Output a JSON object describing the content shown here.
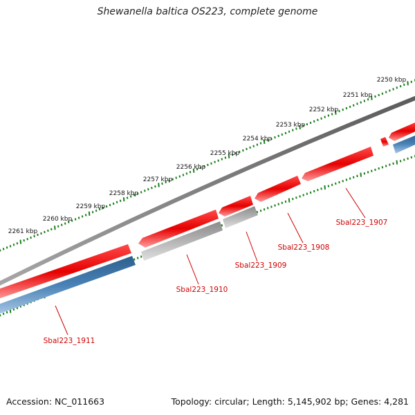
{
  "title": "Shewanella baltica OS223, complete genome",
  "footer": {
    "accession": "Accession: NC_011663",
    "summary": "Topology: circular; Length: 5,145,902 bp; Genes: 4,281"
  },
  "colors": {
    "backbone": "#7a7778",
    "forward_cds": "#e00000",
    "reverse_cds": "#4a82b6",
    "pseudo": "#a8a8a8",
    "ticks": "#1a7f1a",
    "gene_label": "#d00000"
  },
  "tick_labels": [
    "2250 kbp",
    "2251 kbp",
    "2252 kbp",
    "2253 kbp",
    "2254 kbp",
    "2255 kbp",
    "2256 kbp",
    "2257 kbp",
    "2258 kbp",
    "2259 kbp",
    "2260 kbp",
    "2261 kbp"
  ],
  "gene_labels": [
    "Sbal223_1907",
    "Sbal223_1908",
    "Sbal223_1909",
    "Sbal223_1910",
    "Sbal223_1911"
  ]
}
